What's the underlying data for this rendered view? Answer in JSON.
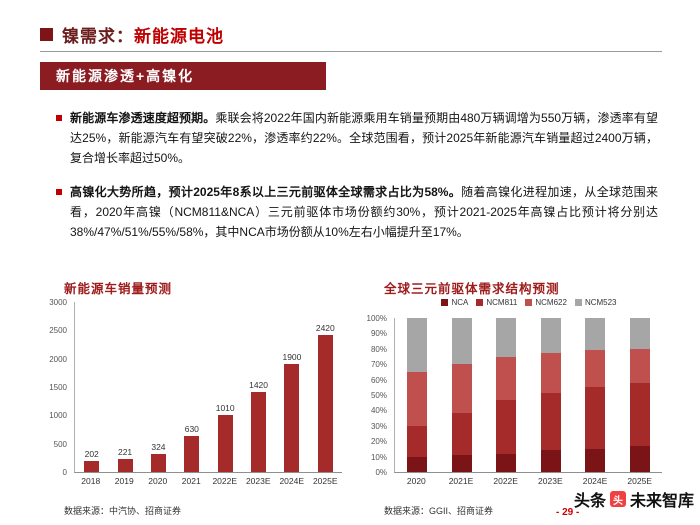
{
  "header": {
    "title_prefix": "镍需求：",
    "title_highlight": "新能源电池",
    "banner": "新能源渗透+高镍化"
  },
  "bullets": [
    {
      "lead": "新能源车渗透速度超预期。",
      "body": "乘联会将2022年国内新能源乘用车销量预期由480万辆调增为550万辆，渗透率有望达25%，新能源汽车有望突破22%，渗透率约22%。全球范围看，预计2025年新能源汽车销量超过2400万辆，复合增长率超过50%。"
    },
    {
      "lead": "高镍化大势所趋，预计2025年8系以上三元前驱体全球需求占比为58%。",
      "body": "随着高镍化进程加速，从全球范围来看，2020年高镍（NCM811&NCA）三元前驱体市场份额约30%，预计2021-2025年高镍占比预计将分别达38%/47%/51%/55%/58%，其中NCA市场份额从10%左右小幅提升至17%。"
    }
  ],
  "chart_data": [
    {
      "type": "bar",
      "title": "新能源车销量预测",
      "categories": [
        "2018",
        "2019",
        "2020",
        "2021",
        "2022E",
        "2023E",
        "2024E",
        "2025E"
      ],
      "values": [
        202,
        221,
        324,
        630,
        1010,
        1420,
        1900,
        2420
      ],
      "ylim": [
        0,
        3000
      ],
      "yticks": [
        "3000",
        "2500",
        "2000",
        "1500",
        "1000",
        "500",
        "0"
      ],
      "bar_color": "#a52a2a",
      "grid": false,
      "source": "数据来源：中汽协、招商证券"
    },
    {
      "type": "bar",
      "subtype": "stacked-100pct",
      "title": "全球三元前驱体需求结构预测",
      "categories": [
        "2020",
        "2021E",
        "2022E",
        "2023E",
        "2024E",
        "2025E"
      ],
      "series": [
        {
          "name": "NCA",
          "color": "#7b1416",
          "values": [
            10,
            11,
            12,
            14,
            15,
            17
          ]
        },
        {
          "name": "NCM811",
          "color": "#a52a2a",
          "values": [
            20,
            27,
            35,
            37,
            40,
            41
          ]
        },
        {
          "name": "NCM622",
          "color": "#c0504d",
          "values": [
            35,
            32,
            28,
            26,
            24,
            22
          ]
        },
        {
          "name": "NCM523",
          "color": "#a6a6a6",
          "values": [
            35,
            30,
            25,
            23,
            21,
            20
          ]
        }
      ],
      "ylim": [
        0,
        100
      ],
      "yticks": [
        "100%",
        "90%",
        "80%",
        "70%",
        "60%",
        "50%",
        "40%",
        "30%",
        "20%",
        "10%",
        "0%"
      ],
      "legend_position": "top",
      "grid": false,
      "source": "数据来源：GGII、招商证券"
    }
  ],
  "footer": {
    "watermark_prefix": "头条",
    "watermark_logo_glyph": "头",
    "watermark_name": "未来智库",
    "page_number": "- 29 -"
  },
  "colors": {
    "accent_red": "#c00000",
    "banner_red": "#8b1c22",
    "title_dark_red": "#7e1417"
  }
}
